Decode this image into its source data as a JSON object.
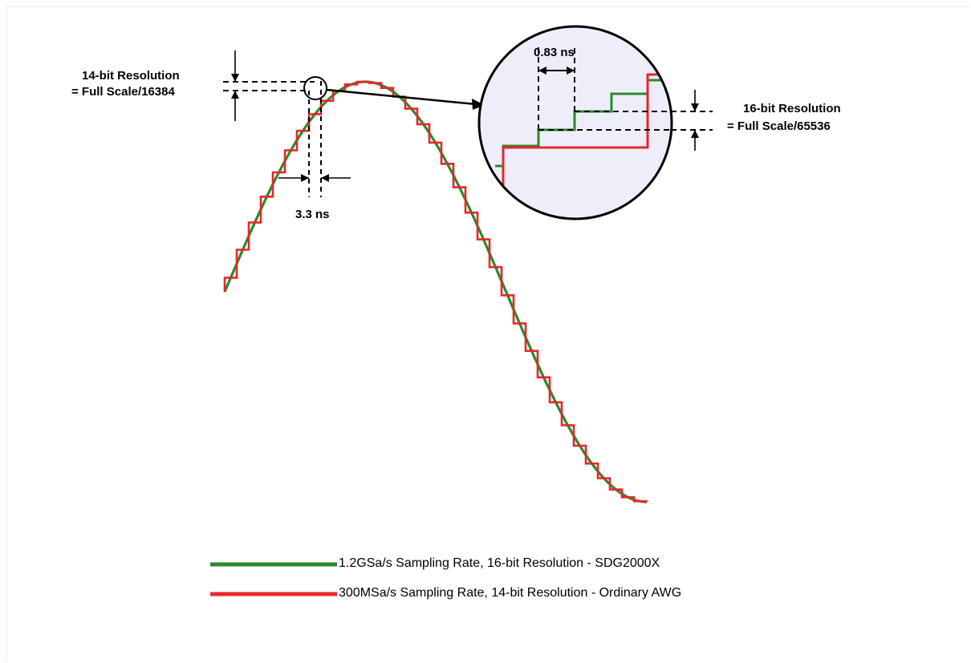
{
  "annotations": {
    "res14_line1": "14-bit Resolution",
    "res14_line2": "= Full Scale/16384",
    "res16_line1": "16-bit Resolution",
    "res16_line2": "= Full Scale/65536",
    "time_coarse": "3.3 ns",
    "time_fine": "0.83 ns"
  },
  "legend": [
    {
      "label": "1.2GSa/s  Sampling Rate, 16-bit Resolution - SDG2000X",
      "color": "#2a8a2a"
    },
    {
      "label": "300MSa/s Sampling Rate, 14-bit Resolution - Ordinary AWG",
      "color": "#e8262c"
    }
  ],
  "colors": {
    "sine": "#2a8a2a",
    "steps": "#e8262c",
    "magnifier_fill": "#eeeefa"
  }
}
